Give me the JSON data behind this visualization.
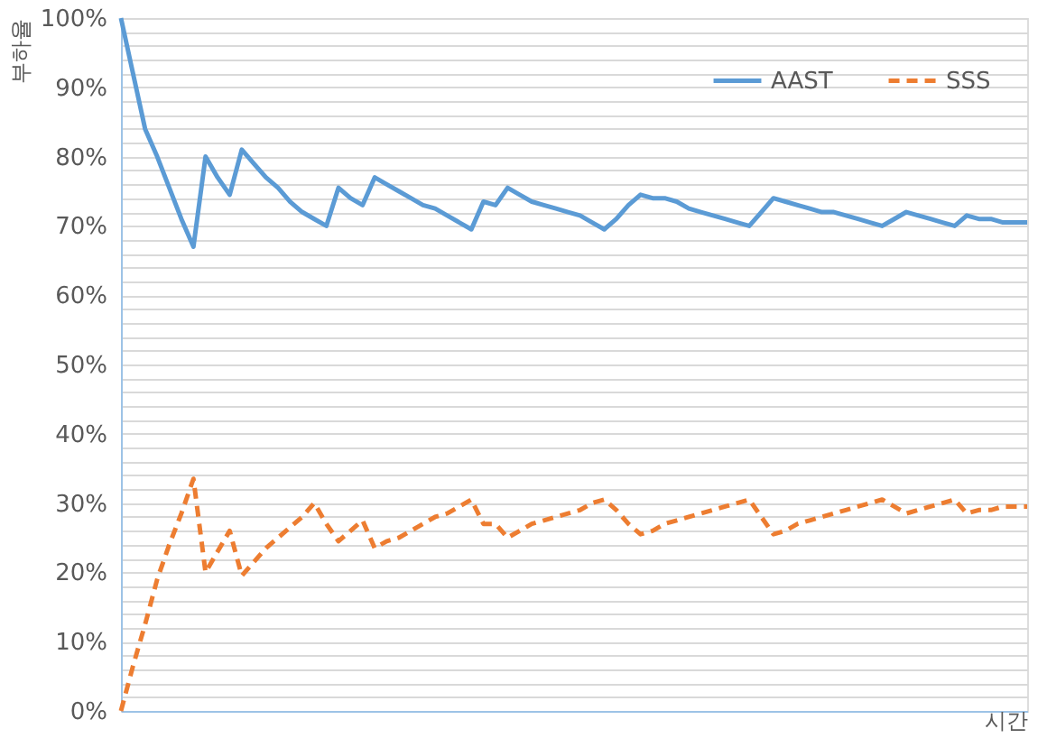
{
  "chart_data": {
    "type": "line",
    "ylabel": "부하율",
    "xlabel": "시간",
    "ylim": [
      0,
      100
    ],
    "tick_labels": "y",
    "grid": "y",
    "legend": "top right",
    "marker": "none",
    "categories": [
      null,
      null,
      null,
      null,
      null,
      null,
      null,
      null,
      null,
      null,
      null,
      null,
      null,
      null,
      null,
      null,
      null,
      null,
      null,
      null,
      null,
      null,
      null,
      null,
      null,
      null,
      null,
      null,
      null,
      null,
      null,
      null,
      null,
      null,
      null,
      null,
      null,
      null,
      null,
      null,
      null,
      null,
      null,
      null,
      null,
      null,
      null,
      null,
      null,
      null,
      null,
      null,
      null,
      null,
      null,
      null,
      null,
      null,
      null,
      null,
      null,
      null,
      null,
      null,
      null,
      null,
      null,
      null,
      null,
      null,
      null,
      null,
      null,
      null,
      null,
      null
    ],
    "yticks": [
      {
        "value": 0,
        "label": "0%"
      },
      {
        "value": 2,
        "label": null
      },
      {
        "value": 4,
        "label": null
      },
      {
        "value": 6,
        "label": null
      },
      {
        "value": 8,
        "label": null
      },
      {
        "value": 10,
        "label": "10%"
      },
      {
        "value": 12,
        "label": null
      },
      {
        "value": 14,
        "label": null
      },
      {
        "value": 16,
        "label": null
      },
      {
        "value": 18,
        "label": null
      },
      {
        "value": 20,
        "label": "20%"
      },
      {
        "value": 22,
        "label": null
      },
      {
        "value": 24,
        "label": null
      },
      {
        "value": 26,
        "label": null
      },
      {
        "value": 28,
        "label": null
      },
      {
        "value": 30,
        "label": "30%"
      },
      {
        "value": 32,
        "label": null
      },
      {
        "value": 34,
        "label": null
      },
      {
        "value": 36,
        "label": null
      },
      {
        "value": 38,
        "label": null
      },
      {
        "value": 40,
        "label": "40%"
      },
      {
        "value": 42,
        "label": null
      },
      {
        "value": 44,
        "label": null
      },
      {
        "value": 46,
        "label": null
      },
      {
        "value": 48,
        "label": null
      },
      {
        "value": 50,
        "label": "50%"
      },
      {
        "value": 52,
        "label": null
      },
      {
        "value": 54,
        "label": null
      },
      {
        "value": 56,
        "label": null
      },
      {
        "value": 58,
        "label": null
      },
      {
        "value": 60,
        "label": "60%"
      },
      {
        "value": 62,
        "label": null
      },
      {
        "value": 64,
        "label": null
      },
      {
        "value": 66,
        "label": null
      },
      {
        "value": 68,
        "label": null
      },
      {
        "value": 70,
        "label": "70%"
      },
      {
        "value": 72,
        "label": null
      },
      {
        "value": 74,
        "label": null
      },
      {
        "value": 76,
        "label": null
      },
      {
        "value": 78,
        "label": null
      },
      {
        "value": 80,
        "label": "80%"
      },
      {
        "value": 82,
        "label": null
      },
      {
        "value": 84,
        "label": null
      },
      {
        "value": 86,
        "label": null
      },
      {
        "value": 88,
        "label": null
      },
      {
        "value": 90,
        "label": "90%"
      },
      {
        "value": 92,
        "label": null
      },
      {
        "value": 94,
        "label": null
      },
      {
        "value": 96,
        "label": null
      },
      {
        "value": 98,
        "label": null
      },
      {
        "value": 100,
        "label": "100%"
      }
    ],
    "series": [
      {
        "name": "AAST",
        "color": "#5b9bd5",
        "line_style": "solid",
        "values": [
          100,
          92,
          84,
          80,
          75.5,
          71,
          67,
          80,
          77,
          74.5,
          81,
          79,
          77,
          75.5,
          73.5,
          72,
          71,
          70,
          75.5,
          74,
          73,
          77,
          76,
          75,
          74,
          73,
          72.5,
          71.5,
          70.5,
          69.5,
          73.5,
          73,
          75.5,
          74.5,
          73.5,
          73,
          72.5,
          72,
          71.5,
          70.5,
          69.5,
          71,
          73,
          74.5,
          74,
          74,
          73.5,
          72.5,
          72,
          71.5,
          71,
          70.5,
          70,
          72,
          74,
          73.5,
          73,
          72.5,
          72,
          72,
          71.5,
          71,
          70.5,
          70,
          71,
          72,
          71.5,
          71,
          70.5,
          70,
          71.5,
          71,
          71,
          70.5,
          70.5,
          70.5
        ]
      },
      {
        "name": "SSS",
        "color": "#ed7d31",
        "line_style": "dashed",
        "values": [
          0,
          6.5,
          12.5,
          19,
          24,
          28.5,
          33.5,
          20,
          23,
          26,
          19.5,
          21.5,
          23.5,
          25,
          26.5,
          28,
          30,
          27,
          24.5,
          26,
          27.5,
          23.5,
          24.5,
          25,
          26,
          27,
          28,
          28.5,
          29.5,
          30.5,
          27,
          27,
          25,
          26,
          27,
          27.5,
          28,
          28.5,
          29,
          30,
          30.5,
          29,
          27,
          25.5,
          26,
          27,
          27.5,
          28,
          28.5,
          29,
          29.5,
          30,
          30.5,
          28,
          25.5,
          26,
          27,
          27.5,
          28,
          28.5,
          29,
          29.5,
          30,
          30.5,
          29.5,
          28.5,
          29,
          29.5,
          30,
          30.5,
          28.5,
          29,
          29,
          29.5,
          29.5,
          29.5
        ]
      }
    ]
  }
}
